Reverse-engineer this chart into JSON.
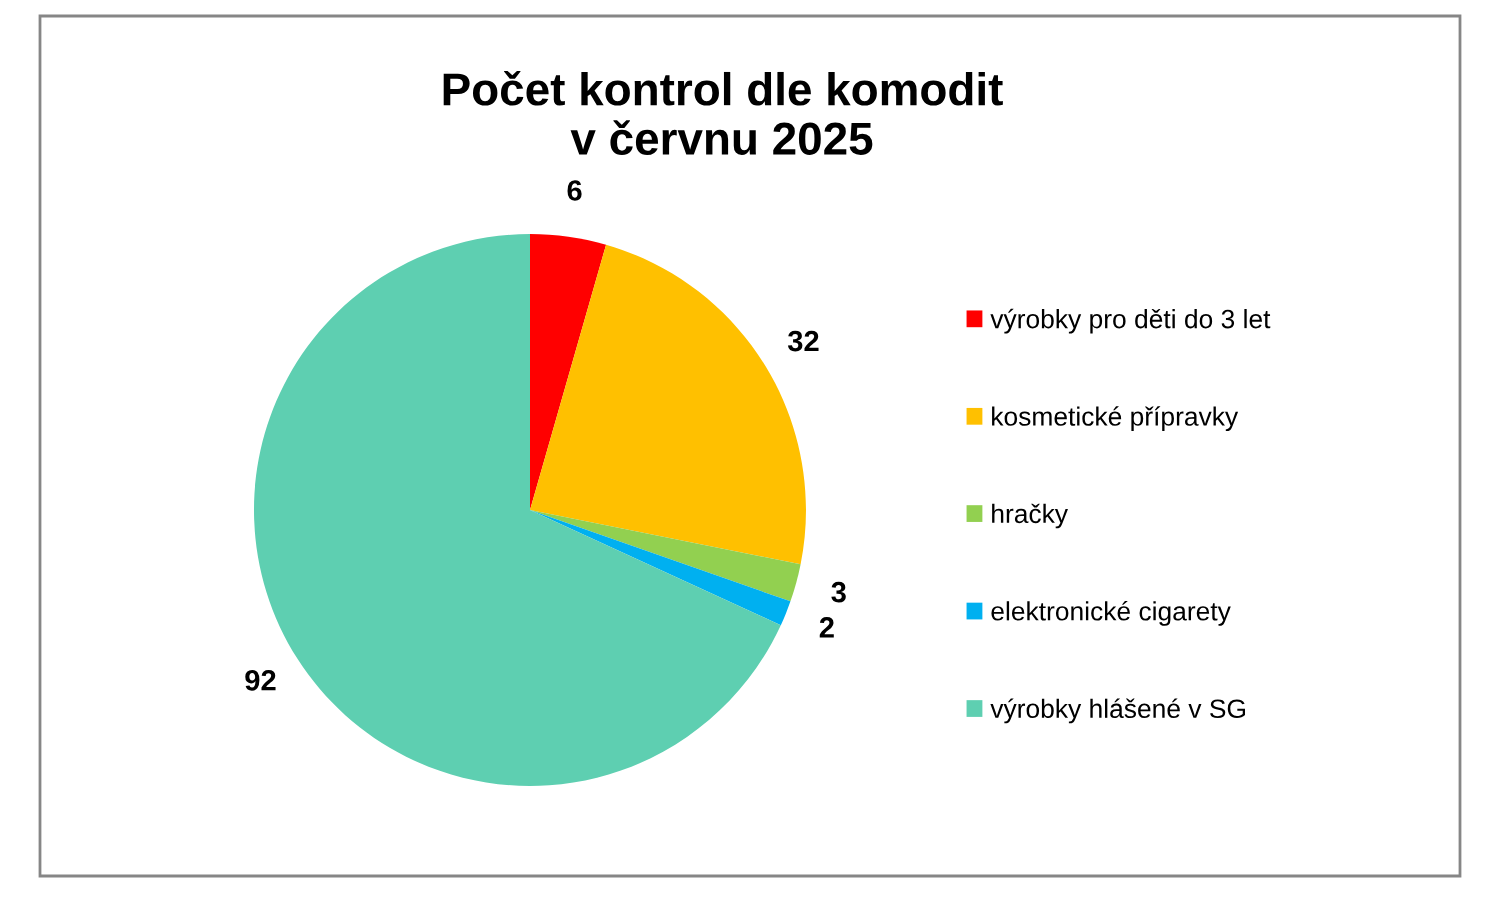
{
  "chart_data": {
    "type": "pie",
    "title": "Počet kontrol dle komodit\nv červnu 2025",
    "categories": [
      "výrobky pro děti do 3 let",
      "kosmetické přípravky",
      "hračky",
      "elektronické cigarety",
      "výrobky hlášené v SG"
    ],
    "values": [
      6,
      32,
      3,
      2,
      92
    ],
    "colors": [
      "#ff0000",
      "#ffc000",
      "#92d050",
      "#00b0f0",
      "#5ecfb1"
    ],
    "data_labels": true,
    "legend": "right"
  }
}
